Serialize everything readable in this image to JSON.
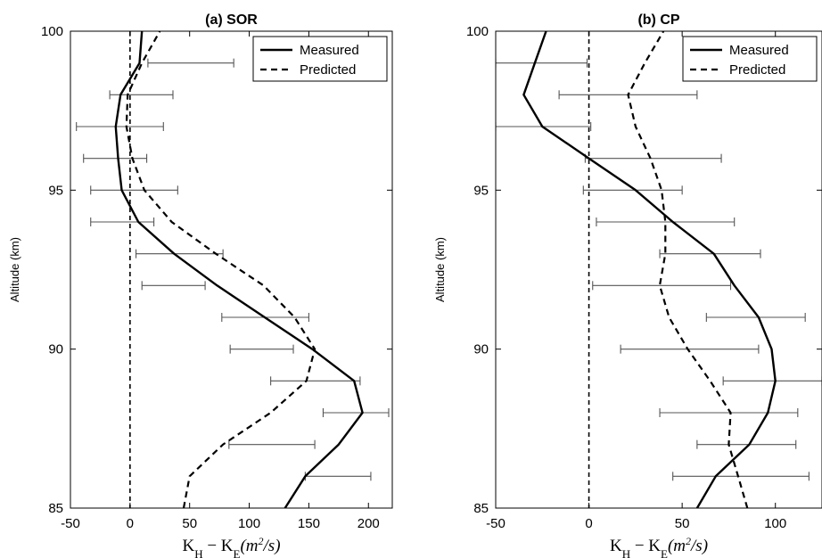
{
  "chart_data": [
    {
      "type": "line",
      "title": "(a) SOR",
      "xlabel": "K_H − K_E(m²/s)",
      "xlabel_main": "K",
      "xlabel_sub1": "H",
      "xlabel_mid": " − K",
      "xlabel_sub2": "E",
      "xlabel_unit_open": "(m",
      "xlabel_unit_sup": "2",
      "xlabel_unit_close": "/s)",
      "ylabel": "Altitude (km)",
      "xlim": [
        -50,
        220
      ],
      "ylim": [
        85,
        100
      ],
      "xticks": [
        -50,
        0,
        50,
        100,
        150,
        200
      ],
      "xtick_labels": [
        "-50",
        "0",
        "50",
        "100",
        "150",
        "200"
      ],
      "yticks": [
        85,
        90,
        95,
        100
      ],
      "ytick_labels": [
        "85",
        "90",
        "95",
        "100"
      ],
      "legend": {
        "position": "top-right",
        "entries": [
          "Measured",
          "Predicted"
        ]
      },
      "series": [
        {
          "name": "Measured",
          "style": "solid",
          "y": [
            85,
            86,
            87,
            88,
            89,
            90,
            91,
            92,
            93,
            94,
            95,
            96,
            97,
            98,
            99,
            100
          ],
          "x": [
            130,
            147,
            175,
            195,
            188,
            153,
            113,
            73,
            37,
            7,
            -7,
            -10,
            -12,
            -8,
            8,
            10
          ]
        },
        {
          "name": "Predicted",
          "style": "dashed",
          "y": [
            85,
            86,
            87,
            88,
            89,
            90,
            91,
            92,
            93,
            94,
            95,
            96,
            97,
            98,
            99,
            100
          ],
          "x": [
            45,
            50,
            78,
            118,
            148,
            155,
            138,
            112,
            72,
            35,
            12,
            2,
            -3,
            -2,
            10,
            25
          ]
        }
      ],
      "zero_line": 0,
      "error_bars": [
        {
          "y": 86,
          "low": 147,
          "high": 202
        },
        {
          "y": 87,
          "low": 83,
          "high": 155
        },
        {
          "y": 88,
          "low": 162,
          "high": 217
        },
        {
          "y": 89,
          "low": 118,
          "high": 193
        },
        {
          "y": 90,
          "low": 84,
          "high": 137
        },
        {
          "y": 91,
          "low": 77,
          "high": 150
        },
        {
          "y": 92,
          "low": 10,
          "high": 63
        },
        {
          "y": 93,
          "low": 5,
          "high": 78
        },
        {
          "y": 94,
          "low": -33,
          "high": 20
        },
        {
          "y": 95,
          "low": -33,
          "high": 40
        },
        {
          "y": 96,
          "low": -39,
          "high": 14
        },
        {
          "y": 97,
          "low": -45,
          "high": 28
        },
        {
          "y": 98,
          "low": -17,
          "high": 36
        },
        {
          "y": 99,
          "low": 15,
          "high": 87
        }
      ]
    },
    {
      "type": "line",
      "title": "(b) CP",
      "xlabel": "K_H − K_E(m²/s)",
      "xlabel_main": "K",
      "xlabel_sub1": "H",
      "xlabel_mid": " − K",
      "xlabel_sub2": "E",
      "xlabel_unit_open": "(m",
      "xlabel_unit_sup": "2",
      "xlabel_unit_close": "/s)",
      "ylabel": "Altitude (km)",
      "xlim": [
        -50,
        125
      ],
      "ylim": [
        85,
        100
      ],
      "xticks": [
        -50,
        0,
        50,
        100
      ],
      "xtick_labels": [
        "-50",
        "0",
        "50",
        "100"
      ],
      "yticks": [
        85,
        90,
        95,
        100
      ],
      "ytick_labels": [
        "85",
        "90",
        "95",
        "100"
      ],
      "legend": {
        "position": "top-right",
        "entries": [
          "Measured",
          "Predicted"
        ]
      },
      "series": [
        {
          "name": "Measured",
          "style": "solid",
          "y": [
            85,
            86,
            87,
            88,
            89,
            90,
            91,
            92,
            93,
            94,
            95,
            96,
            97,
            98,
            99,
            100
          ],
          "x": [
            58,
            68,
            86,
            96,
            100,
            98,
            91,
            78,
            67,
            45,
            25,
            0,
            -25,
            -35,
            -29,
            -23
          ],
          "clip_y_top": 100
        },
        {
          "name": "Predicted",
          "style": "dashed",
          "y": [
            85,
            86,
            87,
            88,
            89,
            90,
            91,
            92,
            93,
            94,
            95,
            96,
            97,
            98,
            99,
            100
          ],
          "x": [
            85,
            80,
            75,
            76,
            65,
            53,
            43,
            38,
            41,
            41,
            39,
            33,
            25,
            21,
            30,
            40
          ]
        }
      ],
      "zero_line": 0,
      "error_bars": [
        {
          "y": 86,
          "low": 45,
          "high": 118
        },
        {
          "y": 87,
          "low": 58,
          "high": 111
        },
        {
          "y": 88,
          "low": 38,
          "high": 112
        },
        {
          "y": 89,
          "low": 72,
          "high": 125
        },
        {
          "y": 90,
          "low": 17,
          "high": 91
        },
        {
          "y": 91,
          "low": 63,
          "high": 116
        },
        {
          "y": 92,
          "low": 2,
          "high": 76
        },
        {
          "y": 93,
          "low": 38,
          "high": 92
        },
        {
          "y": 94,
          "low": 4,
          "high": 78
        },
        {
          "y": 95,
          "low": -3,
          "high": 50
        },
        {
          "y": 96,
          "low": -2,
          "high": 71
        },
        {
          "y": 97,
          "low": -50,
          "high": 1
        },
        {
          "y": 98,
          "low": -16,
          "high": 58
        },
        {
          "y": 99,
          "low": -50,
          "high": -1
        }
      ]
    }
  ]
}
